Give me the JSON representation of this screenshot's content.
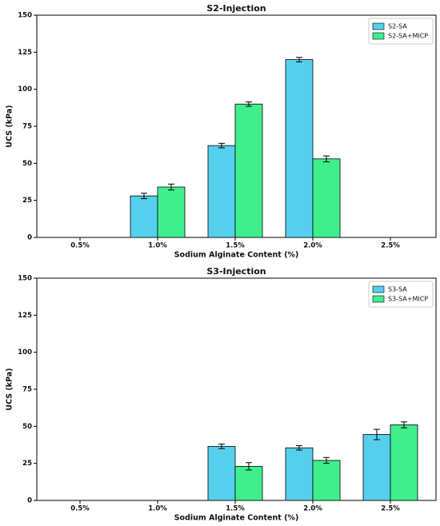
{
  "chart_data": [
    {
      "type": "bar",
      "title": "S2-Injection",
      "x_label": "Sodium Alginate Content (%)",
      "y_label": "UCS (kPa)",
      "categories": [
        "0.5%",
        "1.0%",
        "1.5%",
        "2.0%",
        "2.5%"
      ],
      "series": [
        {
          "name": "S2-SA",
          "color": "#56cfed",
          "values": [
            0,
            28,
            62,
            120,
            0
          ],
          "errors": [
            0,
            1.8,
            1.5,
            1.5,
            0
          ]
        },
        {
          "name": "S2-SA+MICP",
          "color": "#3fef8c",
          "values": [
            0,
            34,
            90,
            53,
            0
          ],
          "errors": [
            0,
            2,
            1.5,
            2,
            0
          ]
        }
      ],
      "ylim": [
        0,
        150
      ],
      "yticks": [
        0,
        25,
        50,
        75,
        100,
        125,
        150
      ],
      "legend": "upper right"
    },
    {
      "type": "bar",
      "title": "S3-Injection",
      "x_label": "Sodium Alginate Content (%)",
      "y_label": "UCS (kPa)",
      "categories": [
        "0.5%",
        "1.0%",
        "1.5%",
        "2.0%",
        "2.5%"
      ],
      "series": [
        {
          "name": "S3-SA",
          "color": "#56cfed",
          "values": [
            0,
            0,
            36.5,
            35.5,
            44.5
          ],
          "errors": [
            0,
            0,
            1.5,
            1.5,
            3.5
          ]
        },
        {
          "name": "S3-SA+MICP",
          "color": "#3fef8c",
          "values": [
            0,
            0,
            23,
            27,
            51
          ],
          "errors": [
            0,
            0,
            2.5,
            2,
            2
          ]
        }
      ],
      "ylim": [
        0,
        150
      ],
      "yticks": [
        0,
        25,
        50,
        75,
        100,
        125,
        150
      ],
      "legend": "upper right"
    }
  ]
}
